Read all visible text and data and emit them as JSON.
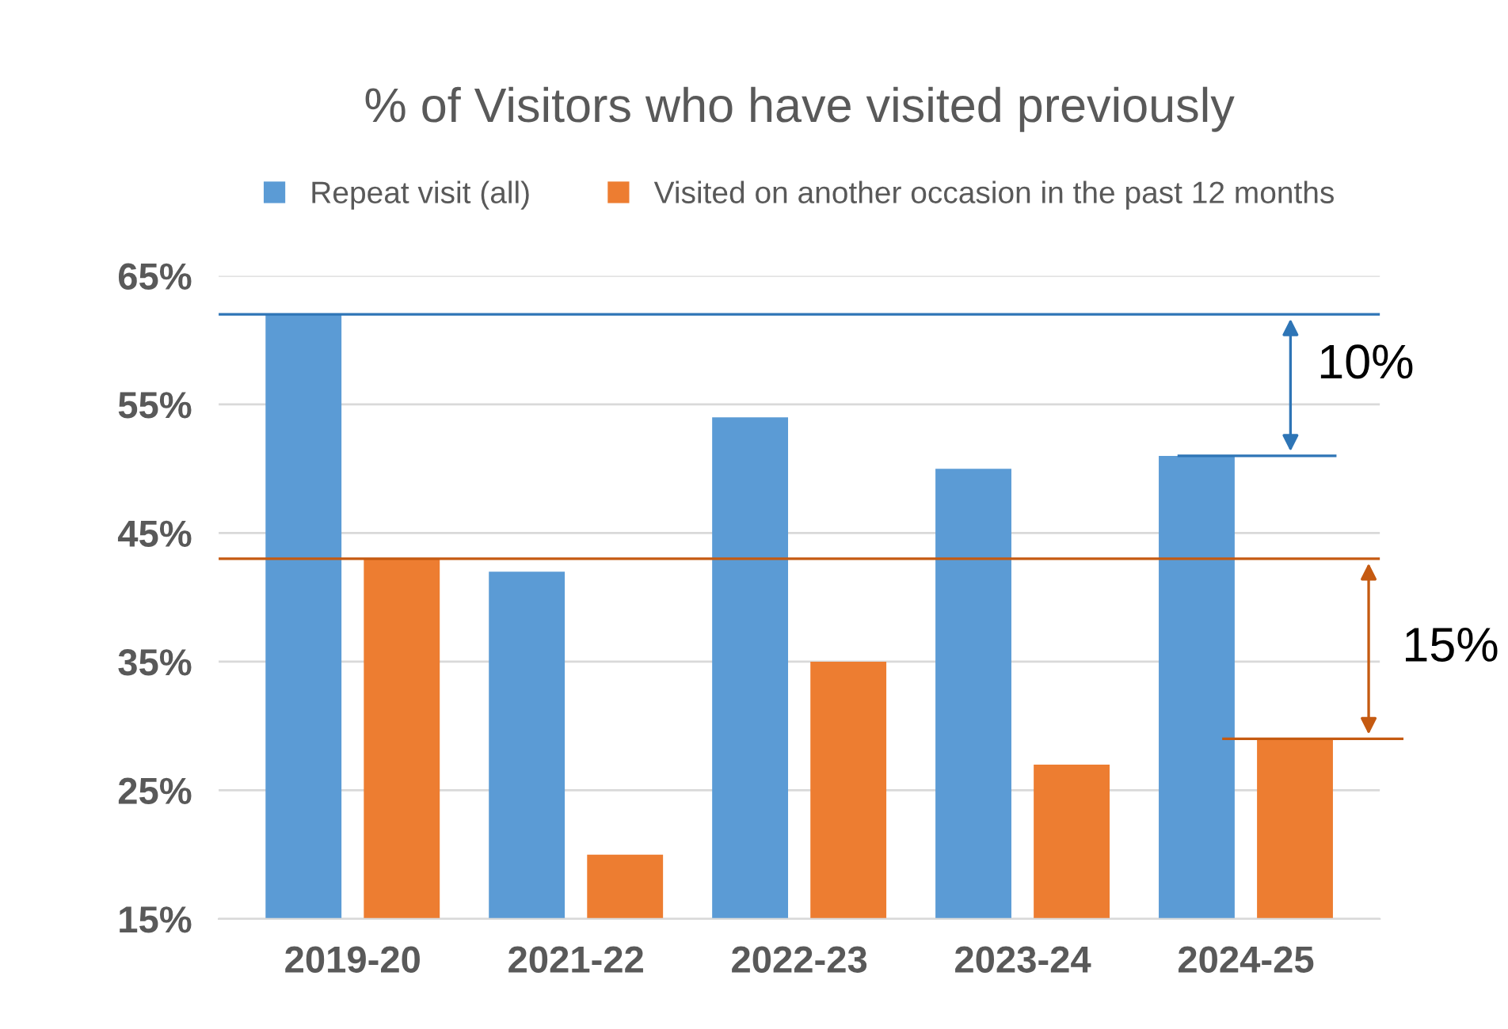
{
  "chart_data": {
    "type": "bar",
    "title": "% of Visitors who have visited previously",
    "categories": [
      "2019-20",
      "2021-22",
      "2022-23",
      "2023-24",
      "2024-25"
    ],
    "series": [
      {
        "name": "Repeat visit (all)",
        "color": "#5b9bd5",
        "values": [
          62,
          42,
          54,
          50,
          51
        ]
      },
      {
        "name": "Visited on another occasion in the past 12 months",
        "color": "#ed7d31",
        "values": [
          43,
          20,
          35,
          27,
          29
        ]
      }
    ],
    "ylim": [
      15,
      65
    ],
    "yticks": [
      {
        "value": 15,
        "label": "15%"
      },
      {
        "value": 25,
        "label": "25%"
      },
      {
        "value": 35,
        "label": "35%"
      },
      {
        "value": 45,
        "label": "45%"
      },
      {
        "value": 55,
        "label": "55%"
      },
      {
        "value": 65,
        "label": "65%"
      }
    ],
    "ref_lines": [
      {
        "axis": "y",
        "value": 62,
        "color": "#2e75b6"
      },
      {
        "axis": "y",
        "value": 43,
        "color": "#c55a11"
      }
    ],
    "annotations": [
      "10%",
      "15%"
    ],
    "grid": "y",
    "legend": "top"
  }
}
